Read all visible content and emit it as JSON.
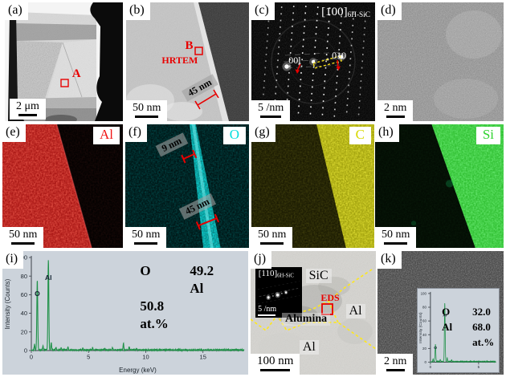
{
  "colors": {
    "al_map": "#f01515",
    "o_map": "#00dede",
    "c_map": "#d8d800",
    "si_map": "#2ed32e",
    "annotation_red": "#e80000",
    "boundary_yellow": "#ffe81a",
    "spectrum_line": "#1f9148"
  },
  "panels": {
    "a": {
      "label": "(a)",
      "scale_bar": "2 μm",
      "roi": "A"
    },
    "b": {
      "label": "(b)",
      "scale_bar": "50 nm",
      "roi": "B",
      "roi_method": "HRTEM",
      "measurement": "45 nm"
    },
    "c": {
      "label": "(c)",
      "scale_bar": "5 /nm",
      "zone_axis": "[100]",
      "phase": "6H-SiC",
      "reflection_left": "00l",
      "reflection_right": "010"
    },
    "d": {
      "label": "(d)",
      "scale_bar": "2 nm"
    },
    "e": {
      "label": "(e)",
      "scale_bar": "50 nm",
      "element": "Al"
    },
    "f": {
      "label": "(f)",
      "scale_bar": "50 nm",
      "element": "O",
      "thin_layer": "9 nm",
      "thick_layer": "45 nm"
    },
    "g": {
      "label": "(g)",
      "scale_bar": "50 nm",
      "element": "C"
    },
    "h": {
      "label": "(h)",
      "scale_bar": "50 nm",
      "element": "Si"
    },
    "i": {
      "label": "(i)"
    },
    "j": {
      "label": "(j)",
      "scale_bar": "100 nm",
      "inset": {
        "zone_axis": "[110]",
        "phase": "6H-SiC",
        "scale_bar": "5 /nm"
      },
      "regions": {
        "sic": "SiC",
        "eds": "EDS",
        "al_right": "Al",
        "alumina": "Alumina",
        "al_bottom": "Al"
      }
    },
    "k": {
      "label": "(k)",
      "scale_bar": "2 nm"
    }
  },
  "chart_data": [
    {
      "id": "panel-i-eds-spectrum",
      "type": "line",
      "panel": "(i)",
      "xlabel": "Energy (keV)",
      "ylabel": "Intensity (Counts)",
      "xlim": [
        0,
        18.6
      ],
      "ylim": [
        0,
        100
      ],
      "xticks": [
        0,
        5,
        10,
        15
      ],
      "yticks": [
        0,
        20,
        40,
        60,
        80,
        100
      ],
      "grid": false,
      "legend_position": "none",
      "peaks": [
        {
          "label": "O",
          "energy_keV": 0.52,
          "height": 75
        },
        {
          "label": "Al",
          "energy_keV": 1.49,
          "height": 97
        }
      ],
      "minor_peaks": [
        {
          "energy_keV": 0.28,
          "height": 6
        },
        {
          "energy_keV": 1.02,
          "height": 4
        },
        {
          "energy_keV": 1.74,
          "height": 8
        },
        {
          "energy_keV": 2.15,
          "height": 3
        },
        {
          "energy_keV": 2.6,
          "height": 2.5
        },
        {
          "energy_keV": 3.2,
          "height": 3
        },
        {
          "energy_keV": 4.5,
          "height": 2
        },
        {
          "energy_keV": 5.35,
          "height": 2.5
        },
        {
          "energy_keV": 6.4,
          "height": 2
        },
        {
          "energy_keV": 7.1,
          "height": 2.5
        },
        {
          "energy_keV": 8.05,
          "height": 7
        },
        {
          "energy_keV": 8.55,
          "height": 3
        },
        {
          "energy_keV": 9.2,
          "height": 2
        }
      ],
      "composition": [
        {
          "element": "O",
          "at_pct": "49.2"
        },
        {
          "element": "Al",
          "at_pct": "50.8"
        }
      ],
      "composition_unit": "at.%"
    },
    {
      "id": "panel-k-inset-eds-spectrum",
      "type": "line",
      "panel": "(k)",
      "xlabel": "",
      "ylabel": "Intensity (Counts)",
      "xlim": [
        0,
        6.8
      ],
      "ylim": [
        0,
        100
      ],
      "xticks": [
        0,
        5
      ],
      "yticks": [
        0,
        20,
        40,
        60,
        80,
        100
      ],
      "grid": false,
      "legend_position": "none",
      "peaks": [
        {
          "label": "O",
          "energy_keV": 0.52,
          "height": 25
        },
        {
          "label": "Al",
          "energy_keV": 1.49,
          "height": 85
        }
      ],
      "minor_peaks": [
        {
          "energy_keV": 0.28,
          "height": 4
        },
        {
          "energy_keV": 1.02,
          "height": 3
        },
        {
          "energy_keV": 1.74,
          "height": 6
        },
        {
          "energy_keV": 2.2,
          "height": 2
        }
      ],
      "composition": [
        {
          "element": "O",
          "at_pct": "32.0"
        },
        {
          "element": "Al",
          "at_pct": "68.0"
        }
      ],
      "composition_unit": "at.%"
    }
  ]
}
